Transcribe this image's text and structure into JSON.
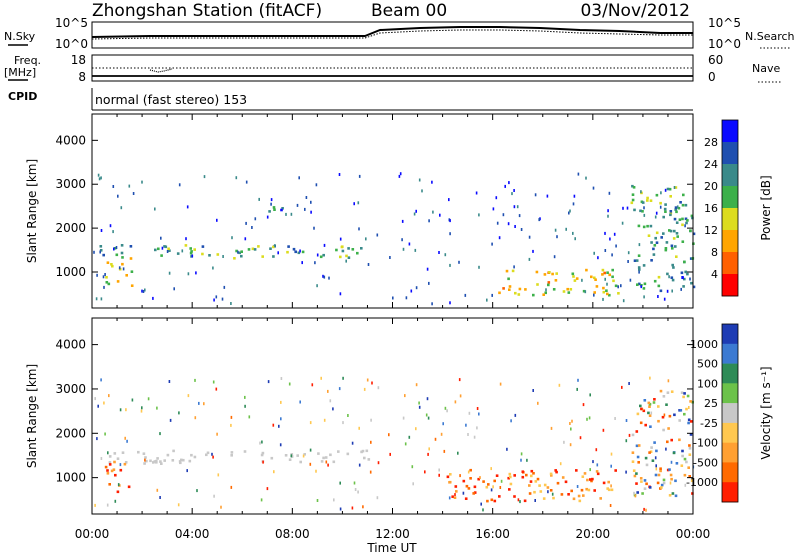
{
  "header": {
    "station": "Zhongshan Station (fitACF)",
    "beam": "Beam 00",
    "date": "03/Nov/2012"
  },
  "top_panels": {
    "nsky_label": "N.Sky",
    "nsky_ticks": [
      "10^5",
      "10^0"
    ],
    "nsearch_label": "N.Search",
    "nsearch_ticks": [
      "10^5",
      "10^0"
    ],
    "freq_label": "Freq.",
    "freq_unit": "[MHz]",
    "freq_ticks": [
      "18",
      "8"
    ],
    "nave_label": "Nave",
    "nave_ticks": [
      "60",
      "0"
    ],
    "cpid_label": "CPID",
    "cpid_text": "normal (fast stereo) 153"
  },
  "chart_data": [
    {
      "type": "heatmap",
      "name": "power",
      "ylabel": "Slant Range [km]",
      "yticks": [
        "4000",
        "3000",
        "2000",
        "1000"
      ],
      "ylim": [
        180,
        4600
      ],
      "xlim": [
        0,
        24
      ],
      "colorbar_label": "Power [dB]",
      "colorbar_ticks": [
        "28",
        "24",
        "20",
        "16",
        "12",
        "8",
        "4"
      ],
      "colorbar_colors": [
        "#0a0aff",
        "#1f4fb0",
        "#3a8a8a",
        "#3cb04a",
        "#dcdc1e",
        "#ffa500",
        "#ff6000",
        "#ff0000"
      ],
      "features": [
        {
          "t0": 0.3,
          "t1": 11.2,
          "r0": 1340,
          "r1": 1640,
          "level": "moderate"
        },
        {
          "t0": 0.5,
          "t1": 1.6,
          "r0": 700,
          "r1": 1400,
          "level": "high"
        },
        {
          "t0": 6.8,
          "t1": 8.6,
          "r0": 2380,
          "r1": 2530,
          "level": "low"
        },
        {
          "t0": 16.0,
          "t1": 21.0,
          "r0": 500,
          "r1": 1100,
          "level": "high"
        },
        {
          "t0": 21.5,
          "t1": 24.0,
          "r0": 600,
          "r1": 3000,
          "level": "moderate"
        }
      ]
    },
    {
      "type": "heatmap",
      "name": "velocity",
      "ylabel": "Slant Range [km]",
      "yticks": [
        "4000",
        "3000",
        "2000",
        "1000"
      ],
      "ylim": [
        180,
        4600
      ],
      "xlim": [
        0,
        24
      ],
      "xticks": [
        "00:00",
        "04:00",
        "08:00",
        "12:00",
        "16:00",
        "20:00",
        "00:00"
      ],
      "xlabel": "Time UT",
      "colorbar_label": "Velocity [m s⁻¹]",
      "colorbar_ticks": [
        "1000",
        "500",
        "100",
        "25",
        "-25",
        "-100",
        "-500",
        "-1000"
      ],
      "colorbar_colors": [
        "#1e3cb4",
        "#3c7ad2",
        "#2e8b57",
        "#6cc24a",
        "#c8c8c8",
        "#ffc850",
        "#ffa032",
        "#ff6a00",
        "#ff1e00"
      ],
      "features": [
        {
          "t0": 0.3,
          "t1": 11.2,
          "r0": 1340,
          "r1": 1640,
          "level": "ground scatter"
        },
        {
          "t0": 0.5,
          "t1": 1.6,
          "r0": 700,
          "r1": 1400,
          "level": "negative"
        },
        {
          "t0": 14.0,
          "t1": 21.0,
          "r0": 500,
          "r1": 1200,
          "level": "negative"
        },
        {
          "t0": 21.5,
          "t1": 24.0,
          "r0": 600,
          "r1": 3000,
          "level": "mixed"
        }
      ]
    }
  ]
}
